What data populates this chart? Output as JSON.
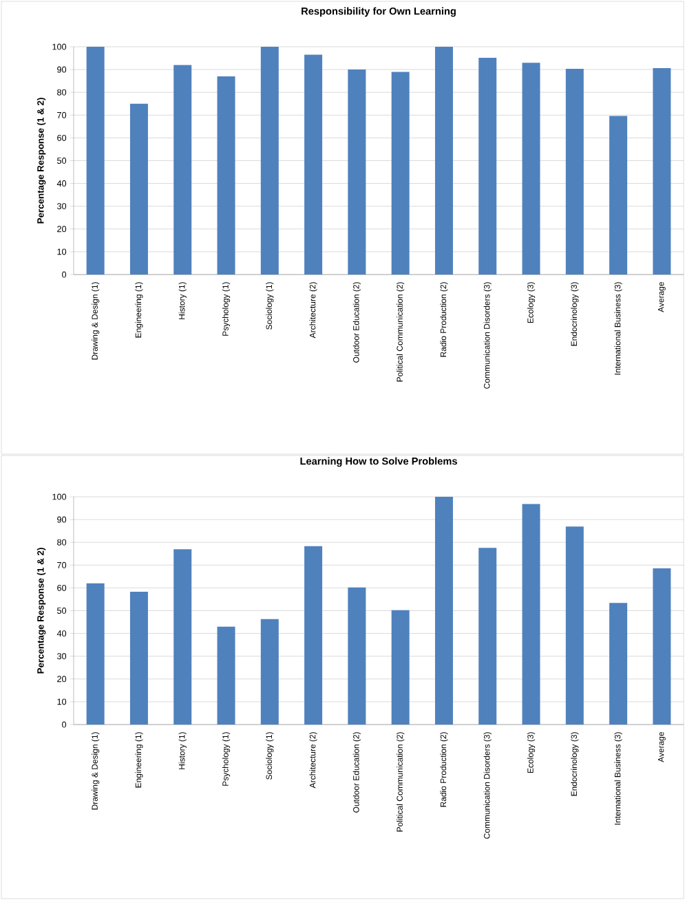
{
  "chart_data": [
    {
      "type": "bar",
      "title": "Responsibility for Own Learning",
      "ylabel": "Percentage Response (1 & 2)",
      "categories": [
        "Drawing & Design (1)",
        "Engineering (1)",
        "History (1)",
        "Psychology (1)",
        "Sociology (1)",
        "Architecture (2)",
        "Outdoor Education (2)",
        "Political Communication (2)",
        "Radio Production (2)",
        "Communication Disorders (3)",
        "Ecology (3)",
        "Endocrinology (3)",
        "International Business (3)",
        "Average"
      ],
      "values": [
        100,
        75,
        92,
        87,
        100,
        96.5,
        90,
        89,
        100,
        95.2,
        93,
        90.3,
        69.6,
        90.6
      ],
      "color": "#4f81bd",
      "ylim": [
        0,
        100
      ],
      "yticks": [
        0,
        10,
        20,
        30,
        40,
        50,
        60,
        70,
        80,
        90,
        100
      ],
      "grid": "y"
    },
    {
      "type": "bar",
      "title": "Learning How to Solve Problems",
      "ylabel": "Percentage Response (1 & 2)",
      "categories": [
        "Drawing & Design (1)",
        "Engineering (1)",
        "History (1)",
        "Psychology (1)",
        "Sociology (1)",
        "Architecture (2)",
        "Outdoor Education (2)",
        "Political Communication (2)",
        "Radio Production (2)",
        "Communication Disorders (3)",
        "Ecology (3)",
        "Endocrinology (3)",
        "International Business (3)",
        "Average"
      ],
      "values": [
        62,
        58.3,
        77,
        43,
        46.3,
        78.3,
        60.2,
        50.2,
        100,
        77.6,
        96.8,
        86.9,
        53.4,
        68.6
      ],
      "color": "#4f81bd",
      "ylim": [
        0,
        100
      ],
      "yticks": [
        0,
        10,
        20,
        30,
        40,
        50,
        60,
        70,
        80,
        90,
        100
      ],
      "grid": "y"
    }
  ]
}
